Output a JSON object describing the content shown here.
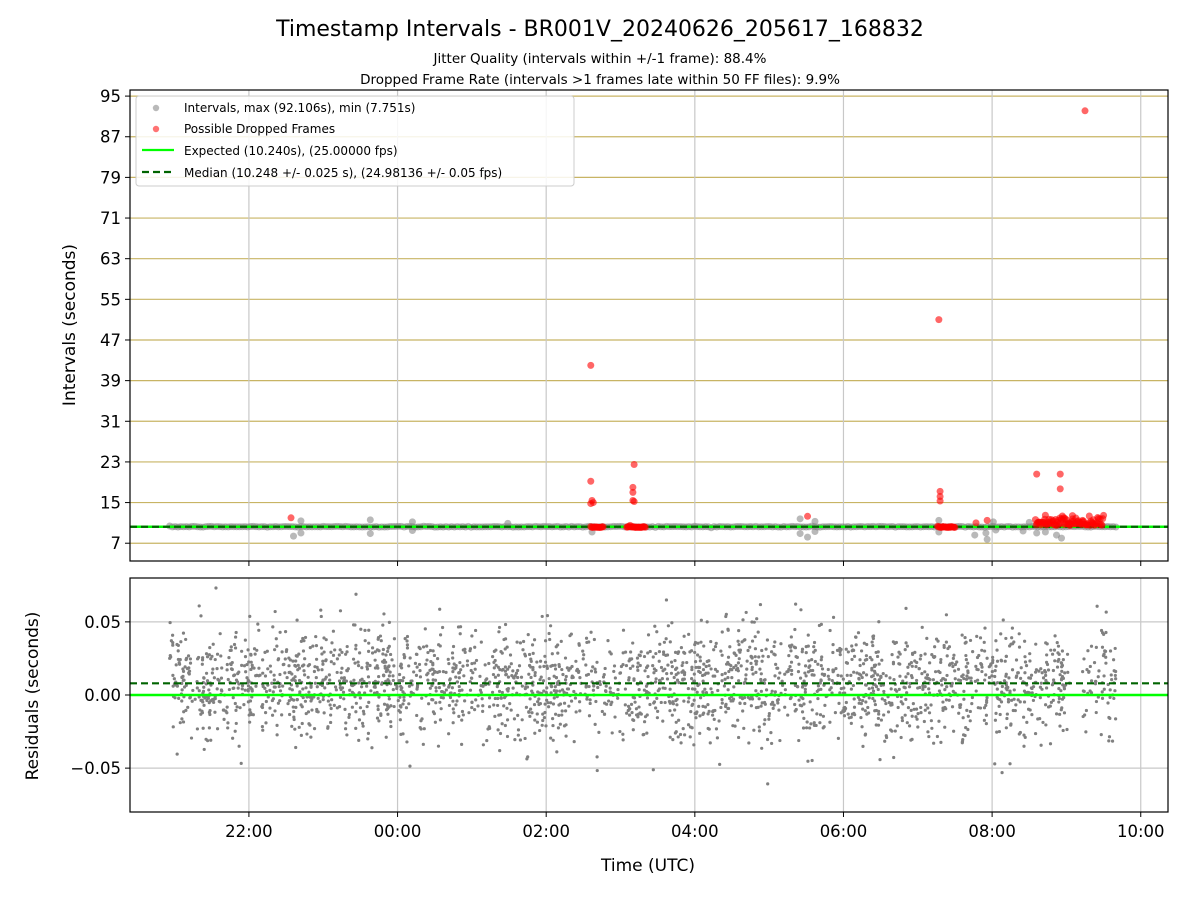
{
  "figure": {
    "title": "Timestamp Intervals - BR001V_20240626_205617_168832",
    "subtitle_line1": "Jitter Quality (intervals within +/-1 frame): 88.4%",
    "subtitle_line2": "Dropped Frame Rate (intervals >1 frames late within 50 FF files): 9.9%"
  },
  "colors": {
    "intervals": "#808080",
    "dropped": "#ff0000",
    "expected": "#00ff00",
    "median": "#006400",
    "hgrid": "#c8b464",
    "vgrid": "#c8c8c8"
  },
  "chart_data": [
    {
      "type": "scatter",
      "ylabel": "Intervals (seconds)",
      "ylim": [
        3.5,
        96.2
      ],
      "yticks": [
        7,
        15,
        23,
        31,
        39,
        47,
        55,
        63,
        71,
        79,
        87,
        95
      ],
      "xlim": [
        "2024-06-26T20:24",
        "2024-06-27T10:22"
      ],
      "xticks": [
        "22:00",
        "00:00",
        "02:00",
        "04:00",
        "06:00",
        "08:00",
        "10:00"
      ],
      "grid": true,
      "legend_position": "top-left",
      "legend": [
        "Intervals, max (92.106s), min (7.751s)",
        "Possible Dropped Frames",
        "Expected (10.240s), (25.00000 fps)",
        "Median (10.248 +/- 0.025 s), (24.98136 +/- 0.05 fps)"
      ],
      "expected_interval": 10.24,
      "median_interval": 10.248,
      "intervals_range": [
        "2024-06-26T20:56",
        "2024-06-27T09:40"
      ],
      "interval_outliers": [
        {
          "t": "2024-06-26T22:36",
          "y": 8.4
        },
        {
          "t": "2024-06-26T22:42",
          "y": 11.4
        },
        {
          "t": "2024-06-26T22:42",
          "y": 9.0
        },
        {
          "t": "2024-06-26T23:38",
          "y": 11.6
        },
        {
          "t": "2024-06-26T23:38",
          "y": 8.9
        },
        {
          "t": "2024-06-27T00:12",
          "y": 11.2
        },
        {
          "t": "2024-06-27T00:12",
          "y": 9.5
        },
        {
          "t": "2024-06-27T01:29",
          "y": 10.9
        },
        {
          "t": "2024-06-27T02:37",
          "y": 9.2
        },
        {
          "t": "2024-06-27T05:25",
          "y": 11.8
        },
        {
          "t": "2024-06-27T05:25",
          "y": 8.9
        },
        {
          "t": "2024-06-27T05:31",
          "y": 8.2
        },
        {
          "t": "2024-06-27T05:37",
          "y": 11.3
        },
        {
          "t": "2024-06-27T05:37",
          "y": 9.3
        },
        {
          "t": "2024-06-27T07:17",
          "y": 11.5
        },
        {
          "t": "2024-06-27T07:17",
          "y": 9.2
        },
        {
          "t": "2024-06-27T07:46",
          "y": 8.6
        },
        {
          "t": "2024-06-27T07:55",
          "y": 9.0
        },
        {
          "t": "2024-06-27T07:56",
          "y": 7.751
        },
        {
          "t": "2024-06-27T08:01",
          "y": 11.2
        },
        {
          "t": "2024-06-27T08:03",
          "y": 9.6
        },
        {
          "t": "2024-06-27T08:25",
          "y": 9.4
        },
        {
          "t": "2024-06-27T08:30",
          "y": 11.1
        },
        {
          "t": "2024-06-27T08:36",
          "y": 9.0
        },
        {
          "t": "2024-06-27T08:43",
          "y": 9.2
        },
        {
          "t": "2024-06-27T08:52",
          "y": 8.6
        },
        {
          "t": "2024-06-27T08:56",
          "y": 8.0
        },
        {
          "t": "2024-06-27T09:02",
          "y": 11.0
        }
      ],
      "dropped_frame_clusters": [
        {
          "from": "2024-06-27T02:36",
          "to": "2024-06-27T02:46",
          "y": 10.3
        },
        {
          "from": "2024-06-27T03:05",
          "to": "2024-06-27T03:20",
          "y": 10.3
        },
        {
          "from": "2024-06-27T07:16",
          "to": "2024-06-27T07:30",
          "y": 10.3
        },
        {
          "from": "2024-06-27T08:35",
          "to": "2024-06-27T09:30",
          "y": 10.7
        }
      ],
      "dropped_frames": [
        {
          "t": "2024-06-26T22:34",
          "y": 12.0
        },
        {
          "t": "2024-06-27T02:36",
          "y": 42.0
        },
        {
          "t": "2024-06-27T02:36",
          "y": 19.2
        },
        {
          "t": "2024-06-27T02:37",
          "y": 15.4
        },
        {
          "t": "2024-06-27T02:36",
          "y": 14.8
        },
        {
          "t": "2024-06-27T02:38",
          "y": 15.0
        },
        {
          "t": "2024-06-27T03:11",
          "y": 22.5
        },
        {
          "t": "2024-06-27T03:10",
          "y": 18.0
        },
        {
          "t": "2024-06-27T03:10",
          "y": 17.0
        },
        {
          "t": "2024-06-27T03:10",
          "y": 15.4
        },
        {
          "t": "2024-06-27T03:11",
          "y": 15.2
        },
        {
          "t": "2024-06-27T05:31",
          "y": 12.3
        },
        {
          "t": "2024-06-27T07:17",
          "y": 51.0
        },
        {
          "t": "2024-06-27T07:18",
          "y": 17.2
        },
        {
          "t": "2024-06-27T07:18",
          "y": 16.2
        },
        {
          "t": "2024-06-27T07:18",
          "y": 15.3
        },
        {
          "t": "2024-06-27T07:47",
          "y": 11.0
        },
        {
          "t": "2024-06-27T07:56",
          "y": 11.5
        },
        {
          "t": "2024-06-27T08:36",
          "y": 20.6
        },
        {
          "t": "2024-06-27T08:43",
          "y": 12.5
        },
        {
          "t": "2024-06-27T08:55",
          "y": 20.6
        },
        {
          "t": "2024-06-27T08:55",
          "y": 17.7
        },
        {
          "t": "2024-06-27T08:58",
          "y": 12.0
        },
        {
          "t": "2024-06-27T09:05",
          "y": 11.8
        },
        {
          "t": "2024-06-27T09:13",
          "y": 11.5
        },
        {
          "t": "2024-06-27T09:15",
          "y": 92.106
        }
      ]
    },
    {
      "type": "scatter",
      "xlabel": "Time (UTC)",
      "ylabel": "Residuals (seconds)",
      "ylim": [
        -0.08,
        0.08
      ],
      "yticks": [
        0.05,
        0.0,
        -0.05
      ],
      "ytick_labels": [
        "0.05",
        "0.00",
        "−0.05"
      ],
      "xlim": [
        "2024-06-26T20:24",
        "2024-06-27T10:22"
      ],
      "xticks": [
        "22:00",
        "00:00",
        "02:00",
        "04:00",
        "06:00",
        "08:00",
        "10:00"
      ],
      "grid": true,
      "expected_residual": 0.0,
      "median_residual": 0.008,
      "residual_spread_sd": 0.019,
      "residual_range": [
        "2024-06-26T20:56",
        "2024-06-27T09:40"
      ],
      "residual_gap": [
        "2024-06-27T09:03",
        "2024-06-27T09:13"
      ]
    }
  ]
}
